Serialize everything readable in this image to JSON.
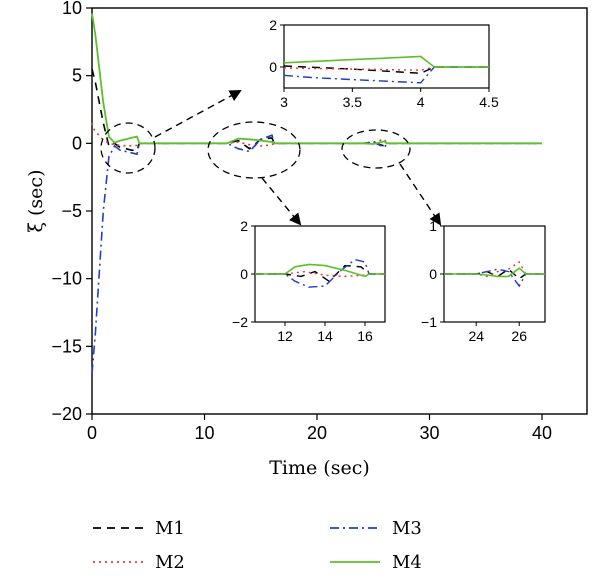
{
  "chart_data": [
    {
      "id": "main",
      "type": "line",
      "title": "",
      "xlabel": "Time (sec)",
      "ylabel": "ξ (sec)",
      "xlim": [
        0,
        44
      ],
      "ylim": [
        -20,
        10
      ],
      "xticks": [
        0,
        10,
        20,
        30,
        40
      ],
      "yticks": [
        10,
        5,
        0,
        -5,
        -10,
        -15,
        -20
      ],
      "grid": false,
      "legend_position": "below",
      "series": [
        {
          "name": "M1",
          "color": "#000000",
          "dash": "8,6",
          "width": 1.6,
          "x": [
            0,
            0.3,
            1.0,
            1.5,
            2.0,
            2.5,
            3.0,
            3.5,
            4.0,
            4.2,
            12,
            13,
            14,
            15,
            16,
            16.2,
            24,
            25,
            26,
            26.2,
            40
          ],
          "y": [
            5.5,
            4.5,
            1.5,
            -0.2,
            0,
            -0.3,
            -0.4,
            -0.5,
            -0.55,
            0,
            0,
            0.2,
            -0.4,
            0.3,
            0.4,
            0,
            0,
            0.05,
            -0.2,
            0,
            0
          ]
        },
        {
          "name": "M2",
          "color": "#e53935",
          "dash": "2,4",
          "width": 1.6,
          "x": [
            0,
            0.2,
            0.8,
            1.5,
            2.0,
            3.0,
            4.0,
            4.2,
            12,
            13,
            14,
            15,
            16,
            16.2,
            24,
            25,
            26,
            26.2,
            40
          ],
          "y": [
            1.5,
            1.0,
            0.4,
            0,
            -0.1,
            -0.2,
            -0.15,
            0,
            0,
            0.1,
            -0.1,
            -0.2,
            -0.1,
            0,
            0,
            0.1,
            0.3,
            0,
            0
          ]
        },
        {
          "name": "M3",
          "color": "#1e40c8",
          "dash": "9,4,2,4",
          "width": 1.6,
          "x": [
            0,
            0.3,
            1.0,
            1.5,
            2.0,
            2.5,
            3.0,
            3.5,
            4.0,
            4.2,
            12,
            13,
            14,
            15,
            16,
            16.2,
            24,
            25,
            26,
            26.2,
            40
          ],
          "y": [
            -17,
            -14,
            -5,
            -1,
            -0.2,
            -0.5,
            -0.6,
            -0.7,
            -0.8,
            0,
            0,
            -0.4,
            -0.6,
            0.3,
            0.6,
            0,
            0,
            0.1,
            -0.3,
            0,
            0
          ]
        },
        {
          "name": "M4",
          "color": "#5cc02a",
          "dash": "",
          "width": 1.8,
          "x": [
            0,
            0.3,
            1.0,
            1.5,
            2.0,
            2.5,
            3.0,
            3.5,
            4.0,
            4.2,
            12,
            13,
            14,
            15,
            16,
            16.2,
            24,
            25,
            26,
            26.2,
            40
          ],
          "y": [
            9.6,
            8.0,
            3.0,
            0.5,
            0.05,
            0.2,
            0.3,
            0.4,
            0.5,
            0,
            0,
            0.35,
            0.3,
            0.2,
            0.1,
            0,
            0,
            -0.05,
            0.15,
            0,
            0
          ]
        }
      ]
    },
    {
      "id": "inset-top",
      "type": "line",
      "xlim": [
        3,
        4.5
      ],
      "ylim": [
        -1,
        2
      ],
      "xticks": [
        "3",
        "3.5",
        "4",
        "4.5"
      ],
      "yticks": [
        "2",
        "0"
      ],
      "series": [
        {
          "name": "M1",
          "x": [
            3,
            3.5,
            4.0,
            4.1,
            4.5
          ],
          "y": [
            0.05,
            -0.1,
            -0.3,
            0,
            0
          ]
        },
        {
          "name": "M2",
          "x": [
            3,
            3.5,
            4.0,
            4.1,
            4.5
          ],
          "y": [
            -0.05,
            -0.1,
            -0.15,
            0,
            0
          ]
        },
        {
          "name": "M3",
          "x": [
            3,
            3.2,
            3.5,
            4.0,
            4.1,
            4.5
          ],
          "y": [
            -0.4,
            -0.5,
            -0.6,
            -0.75,
            0,
            0
          ]
        },
        {
          "name": "M4",
          "x": [
            3,
            3.5,
            4.0,
            4.1,
            4.5
          ],
          "y": [
            0.2,
            0.35,
            0.5,
            0,
            0
          ]
        }
      ]
    },
    {
      "id": "inset-mid",
      "type": "line",
      "xlim": [
        10.5,
        17
      ],
      "ylim": [
        -2,
        2
      ],
      "xticks": [
        "12",
        "14",
        "16"
      ],
      "yticks": [
        "2",
        "0",
        "−2"
      ],
      "series": [
        {
          "name": "M1",
          "x": [
            10.5,
            12,
            12.8,
            13.5,
            14.2,
            15,
            15.8,
            16.2,
            17
          ],
          "y": [
            0,
            0,
            -0.1,
            0.1,
            -0.3,
            0.35,
            0.3,
            0,
            0
          ]
        },
        {
          "name": "M2",
          "x": [
            10.5,
            12,
            13,
            14,
            15,
            16,
            16.2,
            17
          ],
          "y": [
            0,
            0,
            0.1,
            -0.05,
            -0.1,
            -0.05,
            0,
            0
          ]
        },
        {
          "name": "M3",
          "x": [
            10.5,
            12,
            12.5,
            13.2,
            14,
            14.8,
            15.5,
            16,
            16.2,
            17
          ],
          "y": [
            0,
            0,
            -0.3,
            -0.55,
            -0.5,
            0.15,
            0.6,
            0.5,
            0,
            0
          ]
        },
        {
          "name": "M4",
          "x": [
            10.5,
            12,
            12.5,
            13.2,
            14,
            15,
            16,
            16.2,
            17
          ],
          "y": [
            0,
            0,
            0.3,
            0.4,
            0.35,
            0.15,
            -0.1,
            0,
            0
          ]
        }
      ]
    },
    {
      "id": "inset-right",
      "type": "line",
      "xlim": [
        22.5,
        27.2
      ],
      "ylim": [
        -1,
        1
      ],
      "xticks": [
        "24",
        "26"
      ],
      "yticks": [
        "1",
        "0",
        "−1"
      ],
      "series": [
        {
          "name": "M1",
          "x": [
            22.5,
            24,
            24.5,
            25,
            25.5,
            26,
            26.3,
            27.2
          ],
          "y": [
            0,
            0,
            0.05,
            -0.05,
            0.1,
            -0.1,
            0,
            0
          ]
        },
        {
          "name": "M2",
          "x": [
            22.5,
            24,
            24.5,
            25,
            25.5,
            26,
            26.3,
            27.2
          ],
          "y": [
            0,
            0,
            -0.05,
            0.05,
            0.1,
            0.25,
            0,
            0
          ]
        },
        {
          "name": "M3",
          "x": [
            22.5,
            24,
            24.5,
            25,
            25.5,
            26,
            26.3,
            27.2
          ],
          "y": [
            0,
            0,
            0.05,
            0.1,
            0.05,
            -0.25,
            0,
            0
          ]
        },
        {
          "name": "M4",
          "x": [
            22.5,
            24,
            24.5,
            25,
            25.5,
            26,
            26.3,
            27.2
          ],
          "y": [
            0,
            0,
            -0.02,
            -0.05,
            -0.05,
            0.12,
            0,
            0
          ]
        }
      ]
    }
  ],
  "legend": [
    {
      "name": "M1",
      "color": "#000000",
      "dash": "8,6"
    },
    {
      "name": "M2",
      "color": "#e53935",
      "dash": "2,4"
    },
    {
      "name": "M3",
      "color": "#1e40c8",
      "dash": "9,4,2,4"
    },
    {
      "name": "M4",
      "color": "#5cc02a",
      "dash": ""
    }
  ]
}
